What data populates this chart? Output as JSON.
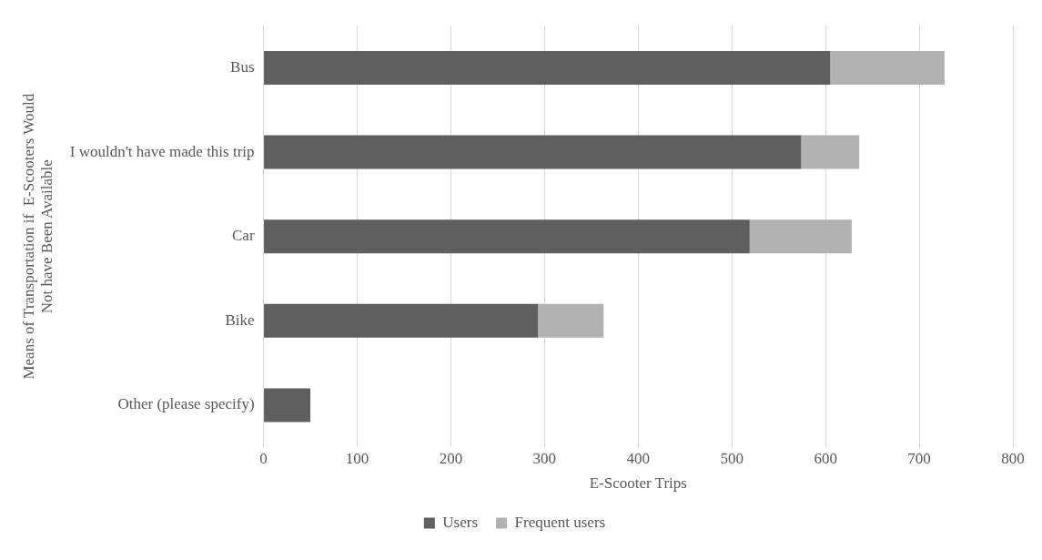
{
  "chart_data": {
    "type": "bar",
    "orientation": "horizontal",
    "stacked": true,
    "xlabel": "E-Scooter Trips",
    "ylabel": "Means of Transportation if  E-Scooters Would Not have Been Available",
    "categories": [
      "Bus",
      "I wouldn't have made this trip",
      "Car",
      "Bike",
      "Other (please specify)"
    ],
    "series": [
      {
        "name": "Users",
        "color": "#5f5f5f",
        "values": [
          605,
          574,
          519,
          293,
          50
        ]
      },
      {
        "name": "Frequent users",
        "color": "#b2b2b2",
        "values": [
          122,
          62,
          109,
          70,
          0
        ]
      }
    ],
    "xlim": [
      0,
      800
    ],
    "xticks": [
      0,
      100,
      200,
      300,
      400,
      500,
      600,
      700,
      800
    ],
    "grid": "x",
    "legend": "bottom"
  }
}
